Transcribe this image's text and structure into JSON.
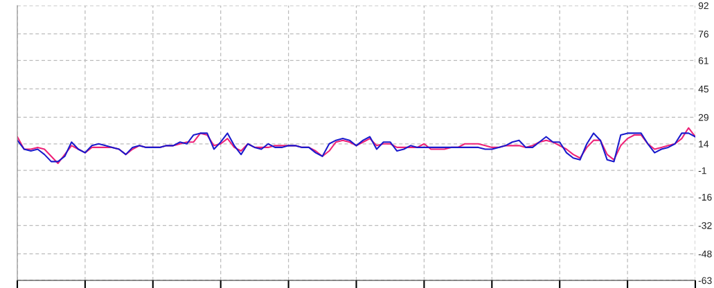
{
  "chart_data": {
    "type": "line",
    "ylim": [
      -63,
      92
    ],
    "categories": [
      null,
      null,
      null,
      null,
      null,
      null,
      null,
      null,
      null,
      null,
      null,
      null,
      null,
      null,
      null,
      null,
      null,
      null,
      null,
      null,
      null,
      null,
      null,
      null,
      null,
      null,
      null,
      null,
      null,
      null,
      null,
      null,
      null,
      null,
      null,
      null,
      null,
      null,
      null,
      null,
      null,
      null,
      null,
      null,
      null,
      null,
      null,
      null,
      null,
      null,
      null,
      null,
      null,
      null,
      null,
      null,
      null,
      null,
      null,
      null,
      null,
      null,
      null,
      null,
      null,
      null,
      null,
      null,
      null,
      null,
      null,
      null,
      null,
      null,
      null,
      null,
      null,
      null,
      null,
      null,
      null,
      null,
      null,
      null,
      null,
      null,
      null,
      null,
      null,
      null,
      null,
      null,
      null,
      null,
      null,
      null,
      null,
      null,
      null,
      null,
      null
    ],
    "yticks": [
      -63,
      -48,
      -32,
      -16,
      -1,
      14,
      29,
      45,
      61,
      76,
      92
    ],
    "tick_labels": "y",
    "grid": true,
    "marker": "none",
    "line_style": "solid",
    "series": [
      {
        "color": "#ee2277",
        "values": [
          18,
          11,
          11,
          12,
          11,
          7,
          3,
          8,
          13,
          11,
          9,
          12,
          12,
          12,
          12,
          11,
          8,
          11,
          13,
          12,
          12,
          12,
          13,
          13,
          14,
          15,
          15,
          20,
          19,
          13,
          14,
          17,
          12,
          10,
          14,
          12,
          12,
          12,
          13,
          13,
          13,
          13,
          12,
          12,
          10,
          7,
          10,
          15,
          16,
          15,
          13,
          15,
          17,
          13,
          14,
          14,
          12,
          12,
          12,
          12,
          14,
          11,
          11,
          11,
          12,
          12,
          14,
          14,
          14,
          13,
          12,
          12,
          13,
          13,
          13,
          12,
          13,
          15,
          16,
          15,
          13,
          11,
          8,
          6,
          12,
          16,
          16,
          8,
          5,
          13,
          17,
          19,
          19,
          14,
          11,
          12,
          13,
          14,
          17,
          23,
          18
        ]
      },
      {
        "color": "#1a1acc",
        "values": [
          16,
          11,
          10,
          11,
          8,
          4,
          4,
          7,
          15,
          11,
          9,
          13,
          14,
          13,
          12,
          11,
          8,
          12,
          13,
          12,
          12,
          12,
          13,
          13,
          15,
          14,
          19,
          20,
          20,
          11,
          15,
          20,
          13,
          8,
          14,
          12,
          11,
          14,
          12,
          12,
          13,
          13,
          12,
          12,
          9,
          7,
          14,
          16,
          17,
          16,
          13,
          16,
          18,
          11,
          15,
          15,
          10,
          11,
          13,
          12,
          12,
          12,
          12,
          12,
          12,
          12,
          12,
          12,
          12,
          11,
          11,
          12,
          13,
          15,
          16,
          12,
          12,
          15,
          18,
          15,
          15,
          9,
          6,
          5,
          14,
          20,
          16,
          5,
          4,
          19,
          20,
          20,
          20,
          14,
          9,
          11,
          12,
          14,
          20,
          20,
          18
        ]
      }
    ]
  }
}
